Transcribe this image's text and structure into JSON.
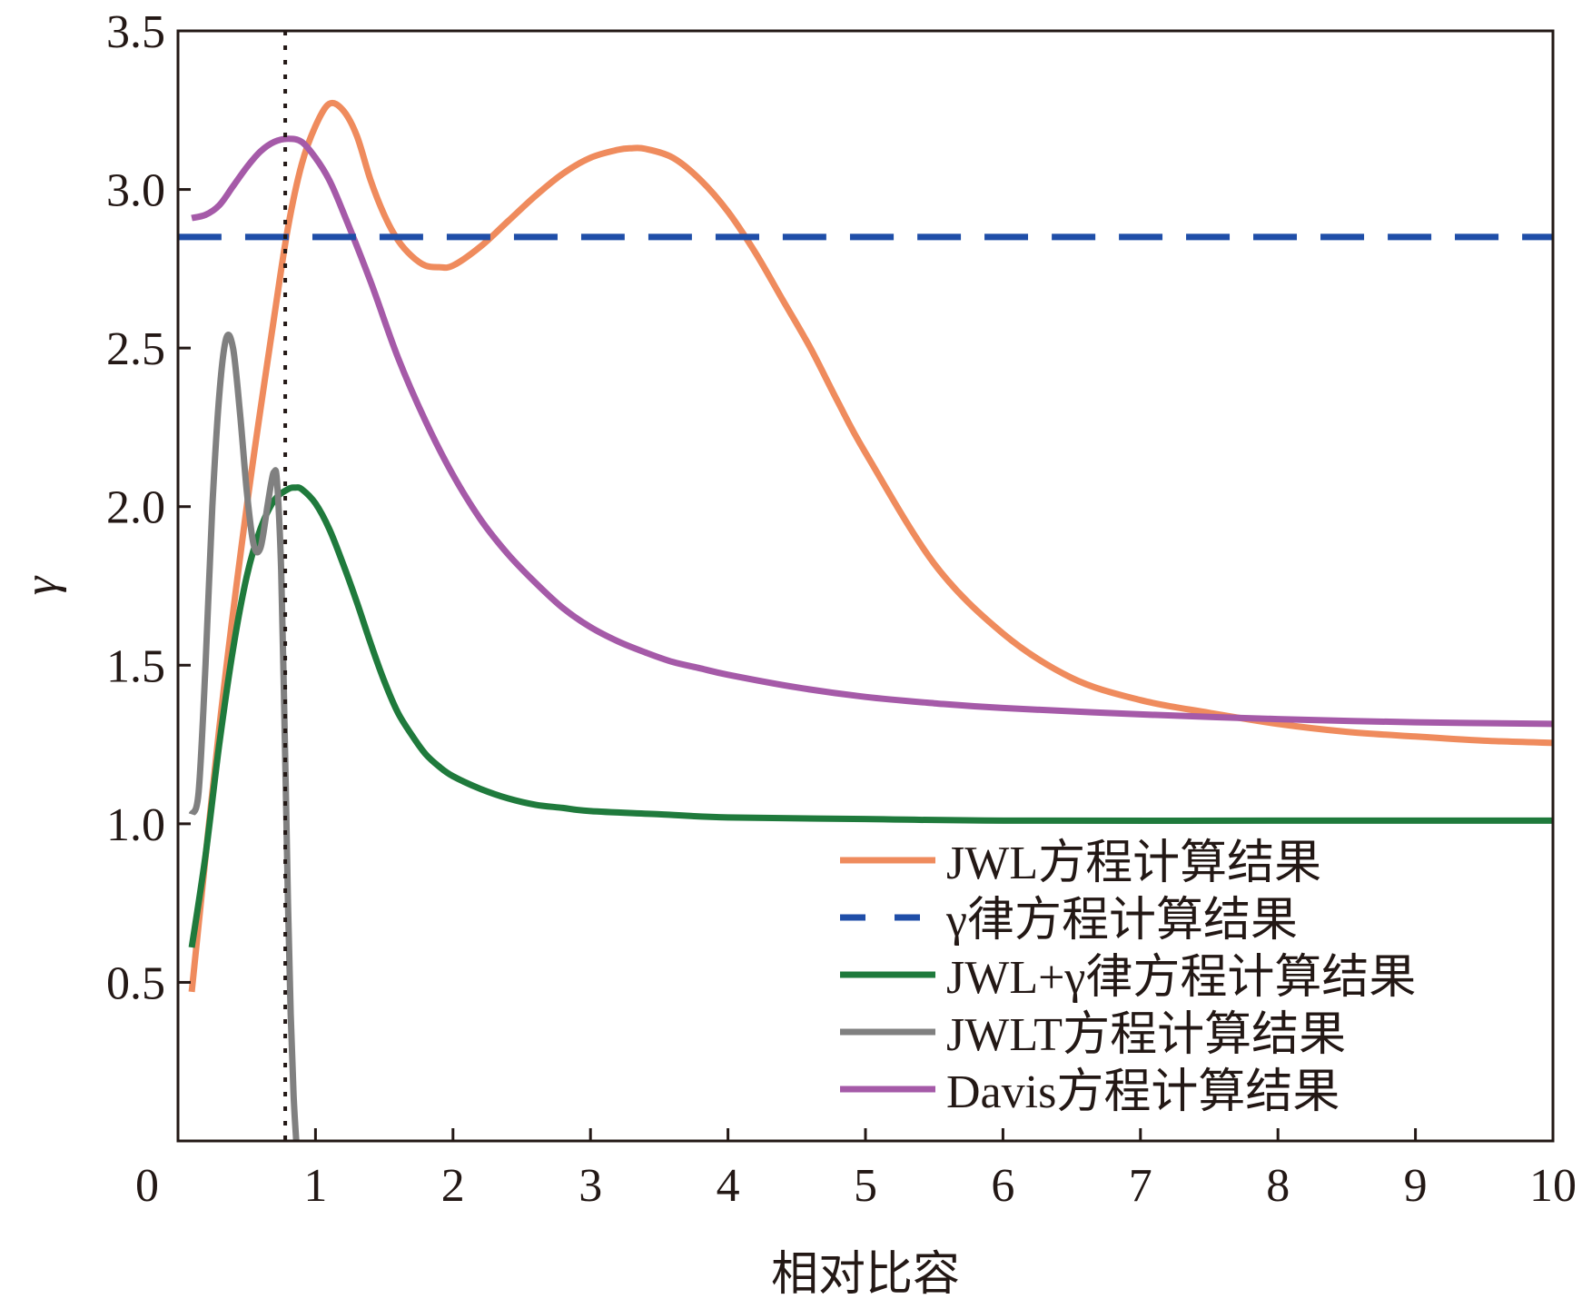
{
  "chart_data": {
    "type": "line",
    "xlabel": "相对比容",
    "ylabel": "γ",
    "xlim": [
      0,
      10
    ],
    "ylim": [
      0,
      3.5
    ],
    "x_ticks": [
      "0",
      "1",
      "2",
      "3",
      "4",
      "5",
      "6",
      "7",
      "8",
      "9",
      "10"
    ],
    "y_ticks": [
      "0.5",
      "1.0",
      "1.5",
      "2.0",
      "2.5",
      "3.0",
      "3.5"
    ],
    "grid": false,
    "legend_position": "bottom-right",
    "reference_line": {
      "x": 0.78,
      "style": "dotted",
      "color": "#231815"
    },
    "series": [
      {
        "name": "JWL方程计算结果",
        "color": "#ef8b5d",
        "style": "solid",
        "points": [
          [
            0.1,
            0.47
          ],
          [
            0.3,
            1.3
          ],
          [
            0.5,
            2.0
          ],
          [
            0.7,
            2.6
          ],
          [
            0.8,
            2.88
          ],
          [
            0.9,
            3.08
          ],
          [
            1.0,
            3.2
          ],
          [
            1.1,
            3.27
          ],
          [
            1.2,
            3.25
          ],
          [
            1.3,
            3.17
          ],
          [
            1.4,
            3.03
          ],
          [
            1.5,
            2.92
          ],
          [
            1.6,
            2.84
          ],
          [
            1.7,
            2.79
          ],
          [
            1.8,
            2.76
          ],
          [
            1.9,
            2.755
          ],
          [
            2.0,
            2.76
          ],
          [
            2.2,
            2.82
          ],
          [
            2.4,
            2.9
          ],
          [
            2.6,
            2.98
          ],
          [
            2.8,
            3.05
          ],
          [
            3.0,
            3.1
          ],
          [
            3.2,
            3.125
          ],
          [
            3.3,
            3.13
          ],
          [
            3.4,
            3.128
          ],
          [
            3.6,
            3.1
          ],
          [
            3.8,
            3.03
          ],
          [
            4.0,
            2.93
          ],
          [
            4.2,
            2.8
          ],
          [
            4.4,
            2.65
          ],
          [
            4.6,
            2.5
          ],
          [
            4.8,
            2.33
          ],
          [
            5.0,
            2.17
          ],
          [
            5.5,
            1.82
          ],
          [
            6.0,
            1.6
          ],
          [
            6.5,
            1.46
          ],
          [
            7.0,
            1.39
          ],
          [
            7.5,
            1.35
          ],
          [
            8.0,
            1.315
          ],
          [
            8.5,
            1.29
          ],
          [
            9.0,
            1.275
          ],
          [
            9.5,
            1.262
          ],
          [
            10.0,
            1.255
          ]
        ]
      },
      {
        "name": "γ律方程计算结果",
        "color": "#1f4ea8",
        "style": "dashed",
        "points": [
          [
            0.0,
            2.85
          ],
          [
            10.0,
            2.85
          ]
        ]
      },
      {
        "name": "JWL+γ律方程计算结果",
        "color": "#1f7a3c",
        "style": "solid",
        "points": [
          [
            0.1,
            0.61
          ],
          [
            0.2,
            0.9
          ],
          [
            0.3,
            1.25
          ],
          [
            0.4,
            1.55
          ],
          [
            0.5,
            1.78
          ],
          [
            0.6,
            1.93
          ],
          [
            0.7,
            2.02
          ],
          [
            0.8,
            2.055
          ],
          [
            0.85,
            2.06
          ],
          [
            0.9,
            2.055
          ],
          [
            1.0,
            2.01
          ],
          [
            1.1,
            1.93
          ],
          [
            1.2,
            1.82
          ],
          [
            1.3,
            1.7
          ],
          [
            1.4,
            1.57
          ],
          [
            1.5,
            1.45
          ],
          [
            1.6,
            1.35
          ],
          [
            1.7,
            1.28
          ],
          [
            1.8,
            1.22
          ],
          [
            1.9,
            1.18
          ],
          [
            2.0,
            1.15
          ],
          [
            2.2,
            1.11
          ],
          [
            2.4,
            1.08
          ],
          [
            2.6,
            1.06
          ],
          [
            2.8,
            1.05
          ],
          [
            3.0,
            1.04
          ],
          [
            3.5,
            1.03
          ],
          [
            4.0,
            1.02
          ],
          [
            5.0,
            1.015
          ],
          [
            6.0,
            1.01
          ],
          [
            8.0,
            1.01
          ],
          [
            10.0,
            1.01
          ]
        ]
      },
      {
        "name": "JWLT方程计算结果",
        "color": "#808080",
        "style": "solid",
        "points": [
          [
            0.1,
            1.03
          ],
          [
            0.15,
            1.1
          ],
          [
            0.2,
            1.5
          ],
          [
            0.25,
            2.0
          ],
          [
            0.3,
            2.35
          ],
          [
            0.35,
            2.53
          ],
          [
            0.4,
            2.5
          ],
          [
            0.45,
            2.3
          ],
          [
            0.5,
            2.05
          ],
          [
            0.55,
            1.88
          ],
          [
            0.6,
            1.87
          ],
          [
            0.65,
            2.0
          ],
          [
            0.68,
            2.08
          ],
          [
            0.7,
            2.11
          ],
          [
            0.72,
            2.08
          ],
          [
            0.75,
            1.8
          ],
          [
            0.78,
            1.2
          ],
          [
            0.8,
            0.75
          ],
          [
            0.82,
            0.4
          ],
          [
            0.84,
            0.15
          ],
          [
            0.86,
            0.0
          ]
        ]
      },
      {
        "name": "Davis方程计算结果",
        "color": "#a55aa8",
        "style": "solid",
        "points": [
          [
            0.1,
            2.91
          ],
          [
            0.2,
            2.92
          ],
          [
            0.3,
            2.95
          ],
          [
            0.4,
            3.01
          ],
          [
            0.5,
            3.07
          ],
          [
            0.6,
            3.12
          ],
          [
            0.7,
            3.15
          ],
          [
            0.8,
            3.16
          ],
          [
            0.9,
            3.15
          ],
          [
            1.0,
            3.1
          ],
          [
            1.1,
            3.03
          ],
          [
            1.2,
            2.93
          ],
          [
            1.4,
            2.71
          ],
          [
            1.6,
            2.47
          ],
          [
            1.8,
            2.27
          ],
          [
            2.0,
            2.1
          ],
          [
            2.2,
            1.96
          ],
          [
            2.4,
            1.85
          ],
          [
            2.6,
            1.76
          ],
          [
            2.8,
            1.68
          ],
          [
            3.0,
            1.62
          ],
          [
            3.2,
            1.575
          ],
          [
            3.4,
            1.54
          ],
          [
            3.6,
            1.51
          ],
          [
            3.8,
            1.49
          ],
          [
            4.0,
            1.47
          ],
          [
            4.5,
            1.43
          ],
          [
            5.0,
            1.4
          ],
          [
            5.5,
            1.38
          ],
          [
            6.0,
            1.365
          ],
          [
            7.0,
            1.345
          ],
          [
            8.0,
            1.33
          ],
          [
            9.0,
            1.32
          ],
          [
            10.0,
            1.315
          ]
        ]
      }
    ]
  }
}
